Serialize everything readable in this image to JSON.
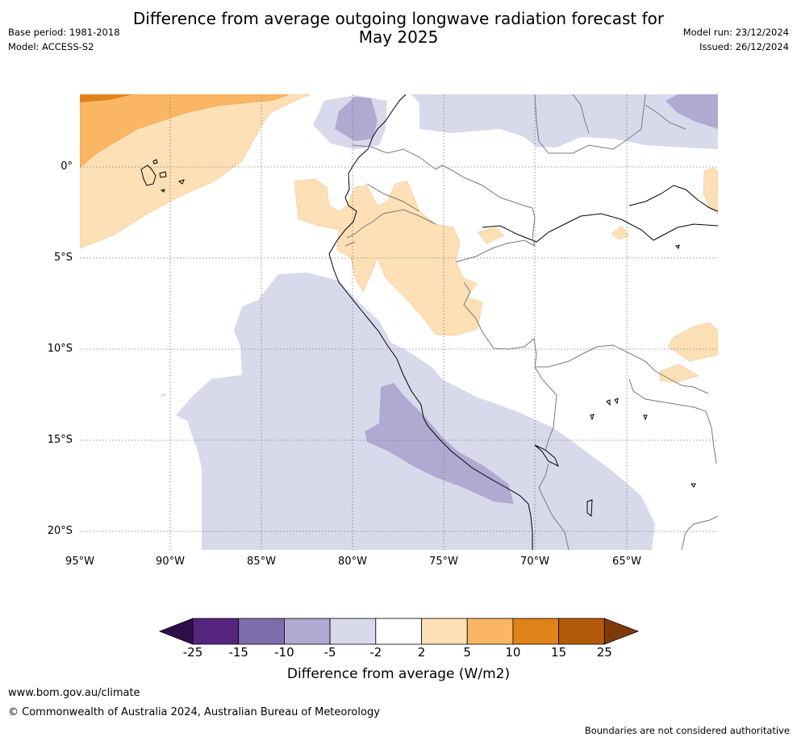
{
  "header": {
    "title_line1": "Difference from average outgoing longwave radiation forecast for",
    "title_line2": "May 2025",
    "base_period": "Base period: 1981-2018",
    "model": "Model: ACCESS-S2",
    "model_run": "Model run: 23/12/2024",
    "issued": "Issued: 26/12/2024"
  },
  "map": {
    "lon_range": [
      -95,
      -60
    ],
    "lat_range": [
      -21,
      4
    ],
    "lat_labels": [
      "0°",
      "5°S",
      "10°S",
      "15°S",
      "20°S"
    ],
    "lon_labels": [
      "95°W",
      "90°W",
      "85°W",
      "80°W",
      "75°W",
      "70°W",
      "65°W"
    ]
  },
  "colorbar": {
    "ticks": [
      "-25",
      "-15",
      "-10",
      "-5",
      "-2",
      "2",
      "5",
      "10",
      "15",
      "25"
    ],
    "colors": [
      "#2d0f4a",
      "#54247f",
      "#7f6eac",
      "#b0a9d1",
      "#d8d9eb",
      "#ffffff",
      "#fde0b5",
      "#fbb664",
      "#e0821a",
      "#b3590a",
      "#7e3a0b"
    ],
    "label": "Difference from average (W/m2)"
  },
  "footer": {
    "website": "www.bom.gov.au/climate",
    "copyright": "© Commonwealth of Australia 2024, Australian Bureau of Meteorology",
    "disclaimer": "Boundaries are not considered authoritative"
  }
}
